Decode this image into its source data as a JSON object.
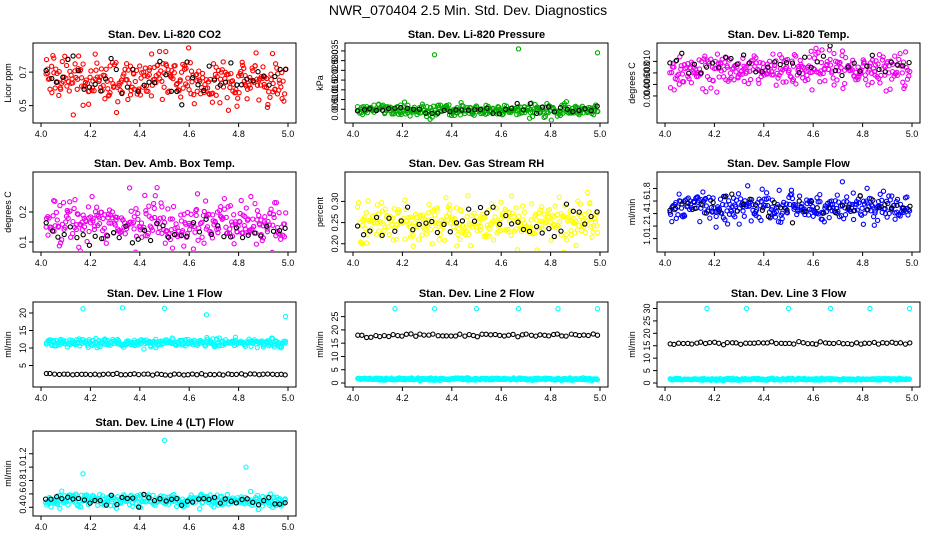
{
  "figure_title": "NWR_070404  2.5 Min. Std. Dev. Diagnostics",
  "chart_data": [
    {
      "id": "co2",
      "type": "scatter",
      "title": "Stan. Dev. Li-820 CO2",
      "ylabel": "Licor ppm",
      "xlim": [
        4.0,
        5.0
      ],
      "ylim": [
        0.42,
        0.85
      ],
      "xticks": [
        4.0,
        4.2,
        4.4,
        4.6,
        4.8,
        5.0
      ],
      "yticks": [
        0.5,
        0.7
      ],
      "series": [
        {
          "name": "main",
          "color": "#ff0000",
          "mean": 0.65,
          "sd": 0.07,
          "n": 320,
          "start": 4.02,
          "end": 4.99
        },
        {
          "name": "black",
          "color": "#000000",
          "mean": 0.66,
          "sd": 0.06,
          "n": 45,
          "start": 4.02,
          "end": 4.99
        }
      ]
    },
    {
      "id": "pressure",
      "type": "scatter",
      "title": "Stan. Dev. Li-820 Pressure",
      "ylabel": "kPa",
      "xlim": [
        4.0,
        5.0
      ],
      "ylim": [
        0.0,
        0.037
      ],
      "xticks": [
        4.0,
        4.2,
        4.4,
        4.6,
        4.8,
        5.0
      ],
      "yticks": [
        0.005,
        0.01,
        0.015,
        0.02,
        0.025,
        0.03,
        0.035
      ],
      "series": [
        {
          "name": "main",
          "color": "#00aa00",
          "mean": 0.0045,
          "sd": 0.0015,
          "n": 320,
          "start": 4.02,
          "end": 4.99
        },
        {
          "name": "black",
          "color": "#000000",
          "mean": 0.005,
          "sd": 0.0012,
          "n": 40,
          "start": 4.02,
          "end": 4.99
        }
      ],
      "outliers": [
        {
          "x": 4.33,
          "y": 0.033
        },
        {
          "x": 4.67,
          "y": 0.036
        },
        {
          "x": 4.99,
          "y": 0.034
        }
      ]
    },
    {
      "id": "temp",
      "type": "scatter",
      "title": "Stan. Dev. Li-820 Temp.",
      "ylabel": "degrees C",
      "xlim": [
        4.0,
        5.0
      ],
      "ylim": [
        0.0,
        0.0125
      ],
      "xticks": [
        4.0,
        4.2,
        4.4,
        4.6,
        4.8,
        5.0
      ],
      "yticks": [
        0.004,
        0.006,
        0.008,
        0.01
      ],
      "series": [
        {
          "name": "main",
          "color": "#ee00ee",
          "mean": 0.0085,
          "sd": 0.0015,
          "n": 320,
          "start": 4.02,
          "end": 4.99
        },
        {
          "name": "black",
          "color": "#000000",
          "mean": 0.0095,
          "sd": 0.0012,
          "n": 40,
          "start": 4.02,
          "end": 4.99
        }
      ]
    },
    {
      "id": "ambbox",
      "type": "scatter",
      "title": "Stan. Dev. Amb. Box Temp.",
      "ylabel": "degrees C",
      "xlim": [
        4.0,
        5.0
      ],
      "ylim": [
        0.08,
        0.32
      ],
      "xticks": [
        4.0,
        4.2,
        4.4,
        4.6,
        4.8,
        5.0
      ],
      "yticks": [
        0.1,
        0.2
      ],
      "series": [
        {
          "name": "main",
          "color": "#ee00ee",
          "mean": 0.16,
          "sd": 0.04,
          "n": 320,
          "start": 4.02,
          "end": 4.99
        },
        {
          "name": "black",
          "color": "#000000",
          "mean": 0.13,
          "sd": 0.02,
          "n": 40,
          "start": 4.02,
          "end": 4.99
        }
      ]
    },
    {
      "id": "rh",
      "type": "scatter",
      "title": "Stan. Dev. Gas Stream RH",
      "ylabel": "percent",
      "xlim": [
        4.0,
        5.0
      ],
      "ylim": [
        0.19,
        0.36
      ],
      "xticks": [
        4.0,
        4.2,
        4.4,
        4.6,
        4.8,
        5.0
      ],
      "yticks": [
        0.2,
        0.25,
        0.3
      ],
      "series": [
        {
          "name": "main",
          "color": "#ffff00",
          "mean": 0.25,
          "sd": 0.025,
          "n": 320,
          "start": 4.02,
          "end": 4.99
        },
        {
          "name": "black",
          "color": "#000000",
          "mean": 0.25,
          "sd": 0.025,
          "n": 40,
          "start": 4.02,
          "end": 4.99
        }
      ]
    },
    {
      "id": "sample",
      "type": "scatter",
      "title": "Stan. Dev. Sample Flow",
      "ylabel": "ml/min",
      "xlim": [
        4.0,
        5.0
      ],
      "ylim": [
        0.85,
        2.0
      ],
      "xticks": [
        4.0,
        4.2,
        4.4,
        4.6,
        4.8,
        5.0
      ],
      "yticks": [
        1.0,
        1.2,
        1.4,
        1.6,
        1.8
      ],
      "series": [
        {
          "name": "main",
          "color": "#0000ff",
          "mean": 1.5,
          "sd": 0.12,
          "n": 320,
          "start": 4.02,
          "end": 4.99
        },
        {
          "name": "black",
          "color": "#000000",
          "mean": 1.5,
          "sd": 0.08,
          "n": 40,
          "start": 4.02,
          "end": 4.99
        }
      ]
    },
    {
      "id": "line1",
      "type": "scatter",
      "title": "Stan. Dev. Line 1 Flow",
      "ylabel": "ml/min",
      "xlim": [
        4.0,
        5.0
      ],
      "ylim": [
        0.0,
        22.0
      ],
      "xticks": [
        4.0,
        4.2,
        4.4,
        4.6,
        4.8,
        5.0
      ],
      "yticks": [
        5,
        10,
        15,
        20
      ],
      "series": [
        {
          "name": "main",
          "color": "#00ffff",
          "mean": 11.5,
          "sd": 0.6,
          "n": 320,
          "start": 4.02,
          "end": 4.99
        },
        {
          "name": "black",
          "color": "#000000",
          "mean": 2.5,
          "sd": 0.15,
          "n": 55,
          "start": 4.02,
          "end": 4.99
        }
      ],
      "outliers": [
        {
          "x": 4.17,
          "y": 21.2
        },
        {
          "x": 4.33,
          "y": 21.5
        },
        {
          "x": 4.5,
          "y": 21.3
        },
        {
          "x": 4.67,
          "y": 19.5
        },
        {
          "x": 4.99,
          "y": 19.0
        }
      ]
    },
    {
      "id": "line2",
      "type": "scatter",
      "title": "Stan. Dev. Line 2 Flow",
      "ylabel": "ml/min",
      "xlim": [
        4.0,
        5.0
      ],
      "ylim": [
        0.0,
        29.0
      ],
      "xticks": [
        4.0,
        4.2,
        4.4,
        4.6,
        4.8,
        5.0
      ],
      "yticks": [
        0,
        5,
        10,
        15,
        20,
        25
      ],
      "series": [
        {
          "name": "main",
          "color": "#00ffff",
          "mean": 1.5,
          "sd": 0.2,
          "n": 320,
          "start": 4.02,
          "end": 4.99
        },
        {
          "name": "black",
          "color": "#000000",
          "mean": 18.0,
          "sd": 0.3,
          "n": 55,
          "start": 4.02,
          "end": 4.99
        }
      ],
      "outliers": [
        {
          "x": 4.17,
          "y": 28.0
        },
        {
          "x": 4.33,
          "y": 28.0
        },
        {
          "x": 4.5,
          "y": 28.0
        },
        {
          "x": 4.67,
          "y": 28.0
        },
        {
          "x": 4.83,
          "y": 28.0
        },
        {
          "x": 4.99,
          "y": 28.0
        }
      ]
    },
    {
      "id": "line3",
      "type": "scatter",
      "title": "Stan. Dev. Line 3 Flow",
      "ylabel": "ml/min",
      "xlim": [
        4.0,
        5.0
      ],
      "ylim": [
        0.0,
        31.0
      ],
      "xticks": [
        4.0,
        4.2,
        4.4,
        4.6,
        4.8,
        5.0
      ],
      "yticks": [
        0,
        5,
        10,
        15,
        20,
        25,
        30
      ],
      "series": [
        {
          "name": "main",
          "color": "#00ffff",
          "mean": 1.5,
          "sd": 0.2,
          "n": 320,
          "start": 4.02,
          "end": 4.99
        },
        {
          "name": "black",
          "color": "#000000",
          "mean": 16.0,
          "sd": 0.3,
          "n": 55,
          "start": 4.02,
          "end": 4.99
        }
      ],
      "outliers": [
        {
          "x": 4.17,
          "y": 30.0
        },
        {
          "x": 4.33,
          "y": 30.0
        },
        {
          "x": 4.5,
          "y": 30.0
        },
        {
          "x": 4.67,
          "y": 30.0
        },
        {
          "x": 4.83,
          "y": 30.0
        },
        {
          "x": 4.99,
          "y": 30.0
        }
      ]
    },
    {
      "id": "line4",
      "type": "scatter",
      "title": "Stan. Dev. Line 4 (LT) Flow",
      "ylabel": "ml/min",
      "xlim": [
        4.0,
        5.0
      ],
      "ylim": [
        0.33,
        1.48
      ],
      "xticks": [
        4.0,
        4.2,
        4.4,
        4.6,
        4.8,
        5.0
      ],
      "yticks": [
        0.4,
        0.6,
        0.8,
        1.0,
        1.2
      ],
      "series": [
        {
          "name": "main",
          "color": "#00ffff",
          "mean": 0.5,
          "sd": 0.05,
          "n": 320,
          "start": 4.02,
          "end": 4.99
        },
        {
          "name": "black",
          "color": "#000000",
          "mean": 0.5,
          "sd": 0.04,
          "n": 45,
          "start": 4.02,
          "end": 4.99
        }
      ],
      "outliers": [
        {
          "x": 4.17,
          "y": 0.9
        },
        {
          "x": 4.5,
          "y": 1.4
        },
        {
          "x": 4.83,
          "y": 1.0
        }
      ]
    }
  ]
}
